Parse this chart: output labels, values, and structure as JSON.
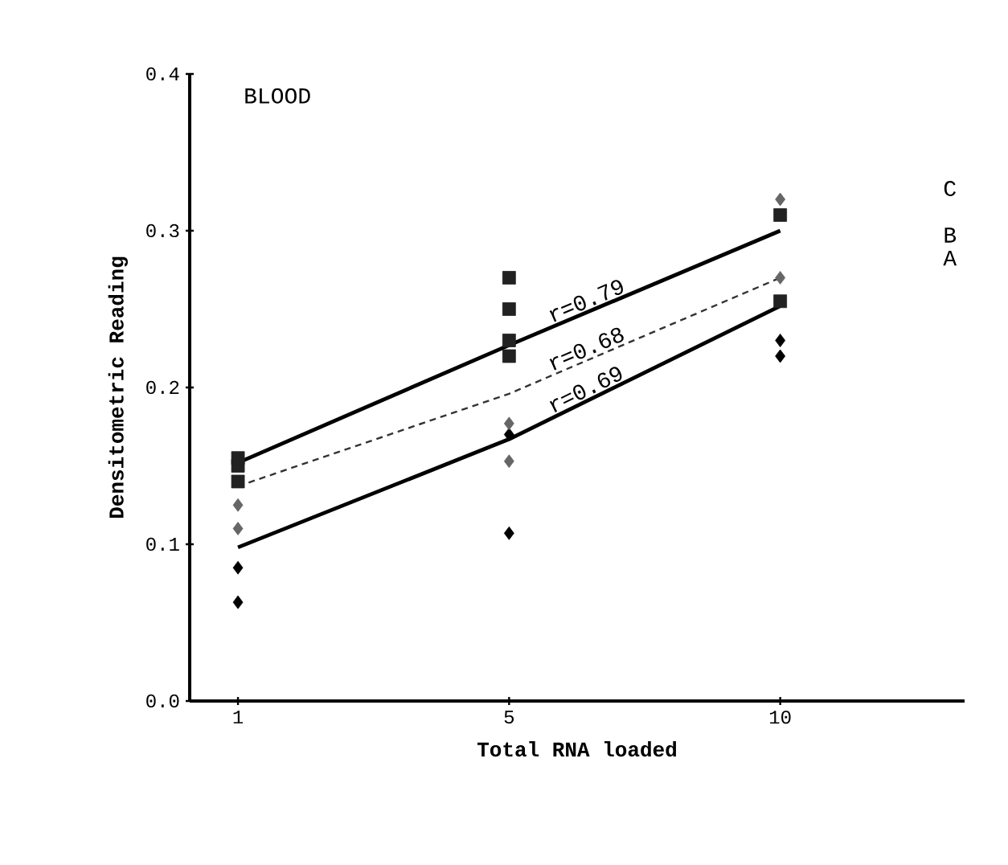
{
  "chart_data": {
    "type": "scatter",
    "title": "BLOOD",
    "xlabel": "Total RNA loaded",
    "ylabel": "Densitometric Reading",
    "categories": [
      "1",
      "5",
      "10"
    ],
    "ylim": [
      0,
      0.4
    ],
    "yticks": [
      {
        "value": 0,
        "label": "0.0"
      },
      0.1,
      0.2,
      0.3,
      0.4
    ],
    "grid": false,
    "series": [
      {
        "name": "A",
        "type": "line",
        "color": "#000000",
        "line_style": "solid",
        "marker": "none",
        "values": [
          0.098,
          0.167,
          0.252
        ]
      },
      {
        "name": "B",
        "type": "line",
        "color": "#333333",
        "line_style": "dashed",
        "marker": "none",
        "values": [
          0.137,
          0.196,
          0.27
        ]
      },
      {
        "name": "C",
        "type": "line",
        "color": "#000000",
        "line_style": "solid",
        "marker": "none",
        "values": [
          0.152,
          0.227,
          0.3
        ]
      },
      {
        "color": "#000000",
        "marker": "diamond",
        "x": [
          "1",
          "1",
          "5",
          "5",
          "10",
          "10"
        ],
        "values": [
          0.085,
          0.063,
          0.17,
          0.107,
          0.23,
          0.22
        ]
      },
      {
        "color": "#666666",
        "marker": "diamond",
        "x": [
          "1",
          "1",
          "5",
          "5",
          "10",
          "10"
        ],
        "values": [
          0.11,
          0.125,
          0.177,
          0.153,
          0.32,
          0.27
        ]
      },
      {
        "color": "#222222",
        "marker": "square",
        "x": [
          "1",
          "1",
          "1",
          "5",
          "5",
          "5",
          "5",
          "10",
          "10"
        ],
        "values": [
          0.14,
          0.15,
          0.155,
          0.27,
          0.25,
          0.23,
          0.22,
          0.31,
          0.255
        ]
      }
    ],
    "annotations": [
      "r=0.69",
      "r=0.68",
      "r=0.79"
    ]
  }
}
